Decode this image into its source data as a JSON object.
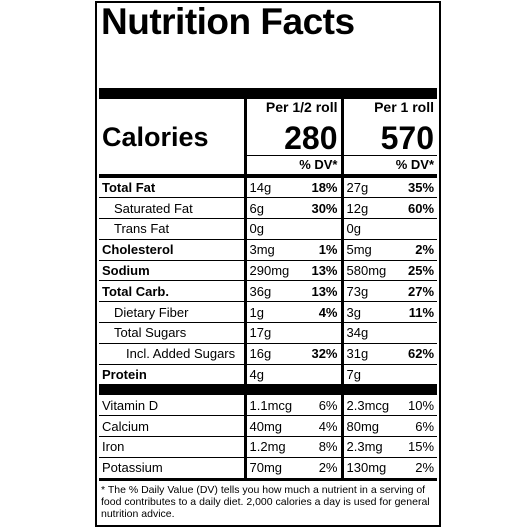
{
  "title": "Nutrition Facts",
  "columns": [
    "Per 1/2 roll",
    "Per 1 roll"
  ],
  "calories": {
    "label": "Calories",
    "values": [
      "280",
      "570"
    ]
  },
  "dv_header": [
    "% DV*",
    "% DV*"
  ],
  "nutrients": [
    {
      "name": "Total Fat",
      "level": 0,
      "cells": [
        "14g",
        "18%",
        "27g",
        "35%"
      ]
    },
    {
      "name": "Saturated Fat",
      "level": 1,
      "cells": [
        "6g",
        "30%",
        "12g",
        "60%"
      ]
    },
    {
      "name": "Trans Fat",
      "level": 1,
      "cells": [
        "0g",
        null,
        "0g",
        null
      ]
    },
    {
      "name": "Cholesterol",
      "level": 0,
      "cells": [
        "3mg",
        "1%",
        "5mg",
        "2%"
      ]
    },
    {
      "name": "Sodium",
      "level": 0,
      "cells": [
        "290mg",
        "13%",
        "580mg",
        "25%"
      ]
    },
    {
      "name": "Total Carb.",
      "level": 0,
      "cells": [
        "36g",
        "13%",
        "73g",
        "27%"
      ]
    },
    {
      "name": "Dietary Fiber",
      "level": 1,
      "cells": [
        "1g",
        "4%",
        "3g",
        "11%"
      ]
    },
    {
      "name": "Total Sugars",
      "level": 1,
      "cells": [
        "17g",
        null,
        "34g",
        null
      ]
    },
    {
      "name": "Incl. Added Sugars",
      "level": 2,
      "cells": [
        "16g",
        "32%",
        "31g",
        "62%"
      ]
    },
    {
      "name": "Protein",
      "level": 0,
      "cells": [
        "4g",
        null,
        "7g",
        null
      ]
    }
  ],
  "vitamins": [
    {
      "name": "Vitamin D",
      "cells": [
        "1.1mcg",
        "6%",
        "2.3mcg",
        "10%"
      ]
    },
    {
      "name": "Calcium",
      "cells": [
        "40mg",
        "4%",
        "80mg",
        "6%"
      ]
    },
    {
      "name": "Iron",
      "cells": [
        "1.2mg",
        "8%",
        "2.3mg",
        "15%"
      ]
    },
    {
      "name": "Potassium",
      "cells": [
        "70mg",
        "2%",
        "130mg",
        "2%"
      ]
    }
  ],
  "footnote": "* The % Daily Value (DV) tells you how much a nutrient in a serving of food contributes to a daily diet. 2,000 calories a day is used for general nutrition advice."
}
